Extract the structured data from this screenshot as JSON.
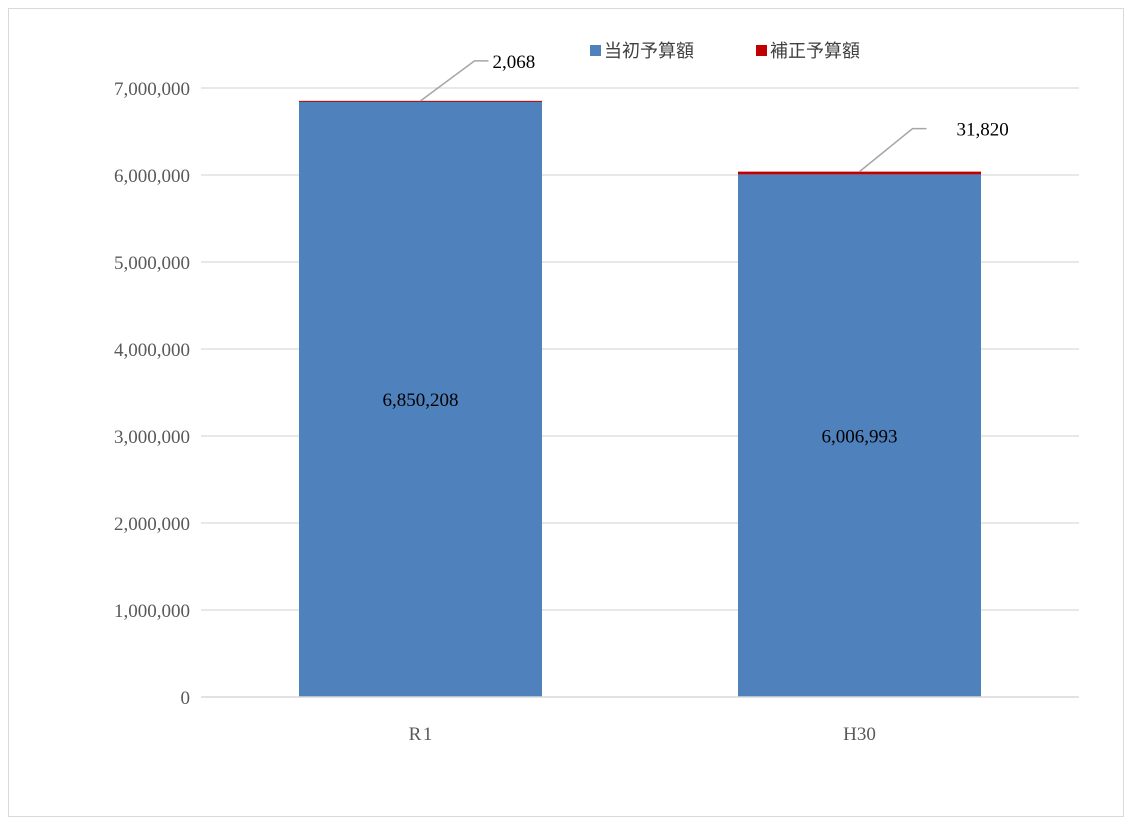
{
  "chart_data": {
    "type": "bar",
    "stacked": true,
    "categories": [
      "R 1",
      "H30"
    ],
    "series": [
      {
        "name": "当初予算額",
        "values": [
          6850208,
          6006993
        ],
        "color": "#4f81bd"
      },
      {
        "name": "補正予算額",
        "values": [
          2068,
          31820
        ],
        "color": "#c00000"
      }
    ],
    "ylim": [
      0,
      7000000
    ],
    "yticks": [
      0,
      1000000,
      2000000,
      3000000,
      4000000,
      5000000,
      6000000,
      7000000
    ],
    "grid": true,
    "legend": "top-right",
    "axis_color": "#d9d9d9",
    "grid_color": "#d9d9d9",
    "leader_color": "#a6a6a6"
  }
}
